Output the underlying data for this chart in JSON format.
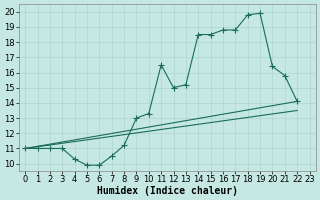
{
  "xlabel": "Humidex (Indice chaleur)",
  "background_color": "#c5e8e2",
  "line_color": "#1a6b5a",
  "grid_color": "#b0d5ce",
  "xlim": [
    -0.5,
    23.5
  ],
  "ylim": [
    9.5,
    20.5
  ],
  "xticks": [
    0,
    1,
    2,
    3,
    4,
    5,
    6,
    7,
    8,
    9,
    10,
    11,
    12,
    13,
    14,
    15,
    16,
    17,
    18,
    19,
    20,
    21,
    22,
    23
  ],
  "yticks": [
    10,
    11,
    12,
    13,
    14,
    15,
    16,
    17,
    18,
    19,
    20
  ],
  "curve1_x": [
    0,
    1,
    2,
    3,
    4,
    5,
    6,
    7,
    8,
    9,
    10,
    11,
    12,
    13,
    14,
    15,
    16,
    17,
    18,
    19,
    20,
    21,
    22
  ],
  "curve1_y": [
    11,
    11,
    11,
    11,
    10.3,
    9.9,
    9.9,
    10.5,
    11.2,
    13.0,
    13.3,
    16.5,
    15.0,
    15.2,
    18.5,
    18.5,
    18.8,
    18.8,
    19.8,
    19.9,
    16.4,
    15.8,
    14.1
  ],
  "line3_x": [
    0,
    22
  ],
  "line3_y": [
    11,
    14.1
  ],
  "line4_x": [
    0,
    22
  ],
  "line4_y": [
    11,
    13.5
  ],
  "font_size": 6,
  "marker_size": 2.2,
  "linewidth": 0.8
}
